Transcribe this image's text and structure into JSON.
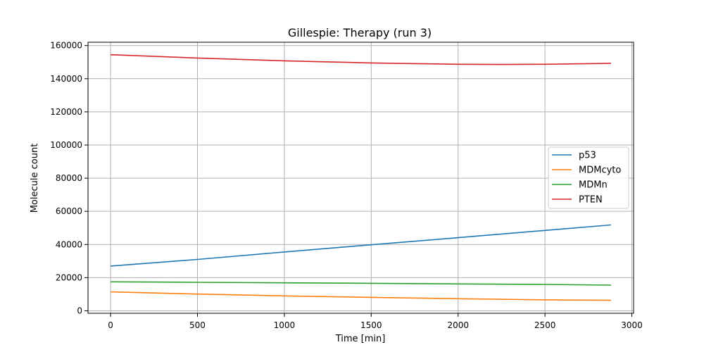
{
  "chart_data": {
    "type": "line",
    "title": "Gillespie: Therapy (run 3)",
    "xlabel": "Time [min]",
    "ylabel": "Molecule count",
    "xlim": [
      -130,
      3010
    ],
    "ylim": [
      -1500,
      162000
    ],
    "xticks": [
      0,
      500,
      1000,
      1500,
      2000,
      2500,
      3000
    ],
    "yticks": [
      0,
      20000,
      40000,
      60000,
      80000,
      100000,
      120000,
      140000,
      160000
    ],
    "grid": true,
    "legend_position": "center-right",
    "series": [
      {
        "name": "p53",
        "color": "#1f77b4",
        "x": [
          0,
          500,
          1000,
          1500,
          2000,
          2500,
          2880
        ],
        "y": [
          27000,
          31000,
          35500,
          39800,
          44100,
          48500,
          51800
        ]
      },
      {
        "name": "MDMcyto",
        "color": "#ff7f0e",
        "x": [
          0,
          500,
          1000,
          1500,
          2000,
          2500,
          2880
        ],
        "y": [
          11400,
          10100,
          9000,
          8100,
          7300,
          6600,
          6300
        ]
      },
      {
        "name": "MDMn",
        "color": "#2ca02c",
        "x": [
          0,
          500,
          1000,
          1500,
          2000,
          2500,
          2880
        ],
        "y": [
          17500,
          17200,
          16900,
          16600,
          16200,
          15900,
          15500
        ]
      },
      {
        "name": "PTEN",
        "color": "#d62728",
        "x": [
          0,
          500,
          1000,
          1500,
          2000,
          2250,
          2500,
          2880
        ],
        "y": [
          154500,
          152500,
          150800,
          149500,
          148700,
          148600,
          148700,
          149300
        ]
      }
    ]
  }
}
